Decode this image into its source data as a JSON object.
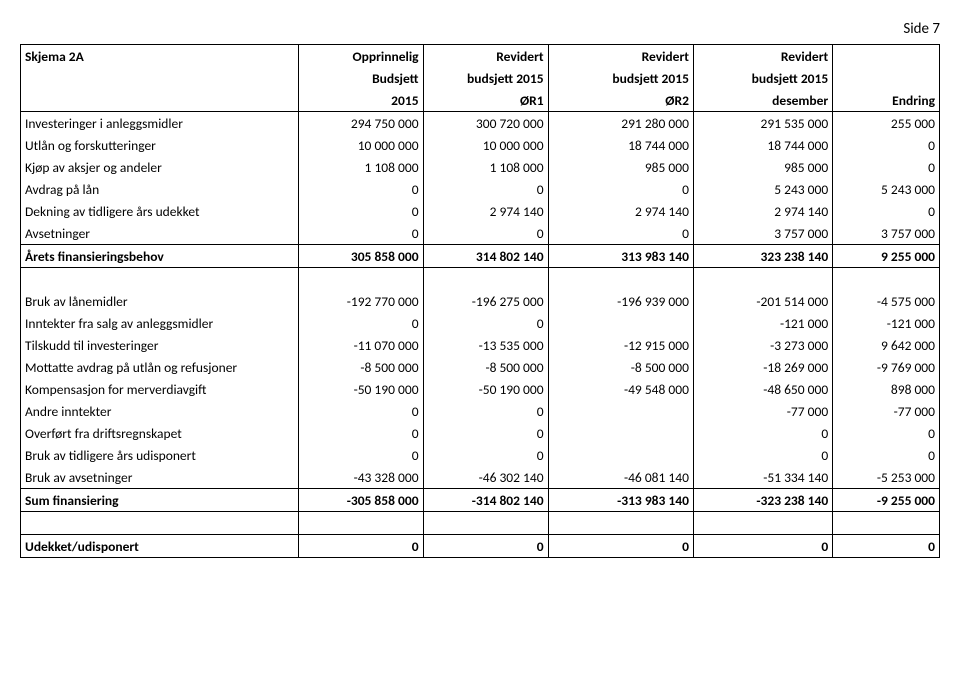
{
  "page_label": "Side 7",
  "table": {
    "header": {
      "r1": [
        "Skjema 2A",
        "Opprinnelig",
        "Revidert",
        "Revidert",
        "Revidert",
        ""
      ],
      "r2": [
        "",
        "Budsjett",
        "budsjett 2015",
        "budsjett 2015",
        "budsjett 2015",
        ""
      ],
      "r3": [
        "",
        "2015",
        "ØR1",
        "ØR2",
        "desember",
        "Endring"
      ]
    },
    "rows_block1": [
      [
        "Investeringer i anleggsmidler",
        "294 750 000",
        "300 720 000",
        "291 280 000",
        "291 535 000",
        "255 000"
      ],
      [
        "Utlån og forskutteringer",
        "10 000 000",
        "10 000 000",
        "18 744 000",
        "18 744 000",
        "0"
      ],
      [
        "Kjøp av aksjer og andeler",
        "1 108 000",
        "1 108 000",
        "985 000",
        "985 000",
        "0"
      ],
      [
        "Avdrag på lån",
        "0",
        "0",
        "0",
        "5 243 000",
        "5 243 000"
      ],
      [
        "Dekning av tidligere års udekket",
        "0",
        "2 974 140",
        "2 974 140",
        "2 974 140",
        "0"
      ],
      [
        "Avsetninger",
        "0",
        "0",
        "0",
        "3 757 000",
        "3 757 000"
      ]
    ],
    "total1": [
      "Årets finansieringsbehov",
      "305 858 000",
      "314 802 140",
      "313 983 140",
      "323 238 140",
      "9 255 000"
    ],
    "rows_block2": [
      [
        "Bruk av lånemidler",
        "-192 770 000",
        "-196 275 000",
        "-196 939 000",
        "-201 514 000",
        "-4 575 000"
      ],
      [
        "Inntekter fra salg av anleggsmidler",
        "0",
        "0",
        "",
        "-121 000",
        "-121 000"
      ],
      [
        "Tilskudd til investeringer",
        "-11 070 000",
        "-13 535 000",
        "-12 915 000",
        "-3 273 000",
        "9 642 000"
      ],
      [
        "Mottatte avdrag på utlån og refusjoner",
        "-8 500 000",
        "-8 500 000",
        "-8 500 000",
        "-18 269 000",
        "-9 769 000"
      ],
      [
        "Kompensasjon for merverdiavgift",
        "-50 190 000",
        "-50 190 000",
        "-49 548 000",
        "-48 650 000",
        "898 000"
      ],
      [
        "Andre inntekter",
        "0",
        "0",
        "",
        "-77 000",
        "-77 000"
      ],
      [
        "Overført fra driftsregnskapet",
        "0",
        "0",
        "",
        "0",
        "0"
      ],
      [
        "Bruk av tidligere års udisponert",
        "0",
        "0",
        "",
        "0",
        "0"
      ],
      [
        "Bruk av avsetninger",
        "-43 328 000",
        "-46 302 140",
        "-46 081 140",
        "-51 334 140",
        "-5 253 000"
      ]
    ],
    "total2": [
      "Sum finansiering",
      "-305 858 000",
      "-314 802 140",
      "-313 983 140",
      "-323 238 140",
      "-9 255 000"
    ],
    "final": [
      "Udekket/udisponert",
      "0",
      "0",
      "0",
      "0",
      "0"
    ]
  },
  "style": {
    "font_family": "Calibri, Arial, sans-serif",
    "header_bold": true,
    "cell_border_color": "#000000",
    "background": "#ffffff",
    "text_color": "#000000"
  }
}
